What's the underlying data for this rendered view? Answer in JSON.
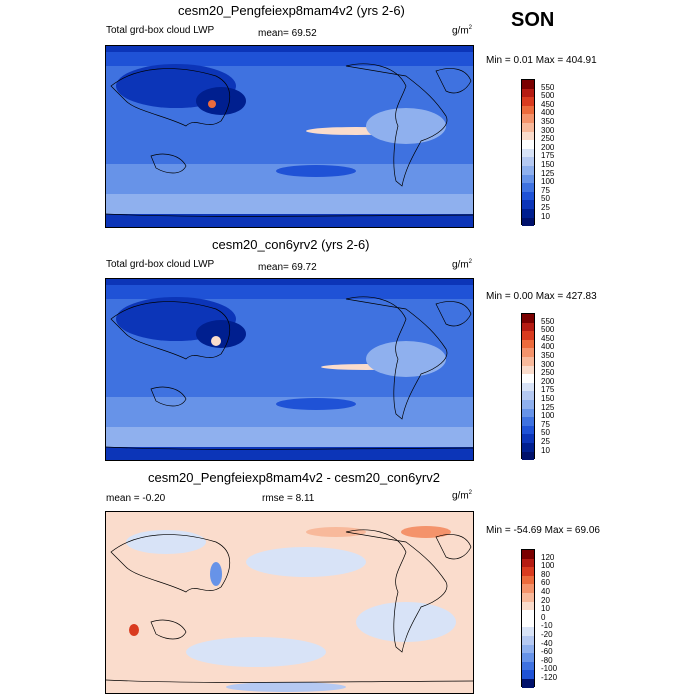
{
  "season": "SON",
  "panels": [
    {
      "title": "cesm20_Pengfeiexp8mam4v2 (yrs 2-6)",
      "left_label": "Total grd-box cloud LWP",
      "stat_label": "mean=  69.52",
      "units_base": "g/m",
      "units_exp": "2",
      "minmax": "Min =   0.01 Max = 404.91",
      "levels": [
        "550",
        "500",
        "450",
        "400",
        "350",
        "300",
        "250",
        "200",
        "175",
        "150",
        "125",
        "100",
        "75",
        "50",
        "25",
        "10"
      ],
      "colors": [
        "#7a0000",
        "#b51b12",
        "#d93b1f",
        "#ec6b3c",
        "#f4936b",
        "#f8b99b",
        "#fadccc",
        "#ffffff",
        "#d8e3f7",
        "#b5c9f2",
        "#8fb0ee",
        "#6793e8",
        "#3f72e0",
        "#1f52d6",
        "#0c35b8",
        "#001f8f",
        "#00116b"
      ]
    },
    {
      "title": "cesm20_con6yrv2 (yrs 2-6)",
      "left_label": "Total grd-box cloud LWP",
      "stat_label": "mean=  69.72",
      "units_base": "g/m",
      "units_exp": "2",
      "minmax": "Min =   0.00 Max = 427.83",
      "levels": [
        "550",
        "500",
        "450",
        "400",
        "350",
        "300",
        "250",
        "200",
        "175",
        "150",
        "125",
        "100",
        "75",
        "50",
        "25",
        "10"
      ],
      "colors": [
        "#7a0000",
        "#b51b12",
        "#d93b1f",
        "#ec6b3c",
        "#f4936b",
        "#f8b99b",
        "#fadccc",
        "#ffffff",
        "#d8e3f7",
        "#b5c9f2",
        "#8fb0ee",
        "#6793e8",
        "#3f72e0",
        "#1f52d6",
        "#0c35b8",
        "#001f8f",
        "#00116b"
      ]
    },
    {
      "title": "cesm20_Pengfeiexp8mam4v2 - cesm20_con6yrv2",
      "left_label": "mean =  -0.20",
      "stat_label": "rmse =   8.11",
      "units_base": "g/m",
      "units_exp": "2",
      "minmax": "Min = -54.69 Max =  69.06",
      "levels": [
        "120",
        "100",
        "80",
        "60",
        "40",
        "20",
        "10",
        "0",
        "-10",
        "-20",
        "-40",
        "-60",
        "-80",
        "-100",
        "-120"
      ],
      "colors": [
        "#7a0000",
        "#b51b12",
        "#d93b1f",
        "#ec6b3c",
        "#f4936b",
        "#f8b99b",
        "#fadccc",
        "#ffffff",
        "#ffffff",
        "#d8e3f7",
        "#b5c9f2",
        "#8fb0ee",
        "#6793e8",
        "#3f72e0",
        "#1f52d6",
        "#00116b"
      ]
    }
  ],
  "chart_data": [
    {
      "type": "heatmap",
      "title": "cesm20_Pengfeiexp8mam4v2 (yrs 2-6)",
      "variable": "Total grd-box cloud LWP",
      "units": "g/m2",
      "season": "SON",
      "mean": 69.52,
      "min": 0.01,
      "max": 404.91,
      "contour_levels": [
        10,
        25,
        50,
        75,
        100,
        125,
        150,
        175,
        200,
        250,
        300,
        350,
        400,
        450,
        500,
        550
      ]
    },
    {
      "type": "heatmap",
      "title": "cesm20_con6yrv2 (yrs 2-6)",
      "variable": "Total grd-box cloud LWP",
      "units": "g/m2",
      "season": "SON",
      "mean": 69.72,
      "min": 0.0,
      "max": 427.83,
      "contour_levels": [
        10,
        25,
        50,
        75,
        100,
        125,
        150,
        175,
        200,
        250,
        300,
        350,
        400,
        450,
        500,
        550
      ]
    },
    {
      "type": "heatmap",
      "title": "cesm20_Pengfeiexp8mam4v2 - cesm20_con6yrv2",
      "units": "g/m2",
      "season": "SON",
      "mean": -0.2,
      "rmse": 8.11,
      "min": -54.69,
      "max": 69.06,
      "contour_levels": [
        -120,
        -100,
        -80,
        -60,
        -40,
        -20,
        -10,
        0,
        10,
        20,
        40,
        60,
        80,
        100,
        120
      ]
    }
  ]
}
